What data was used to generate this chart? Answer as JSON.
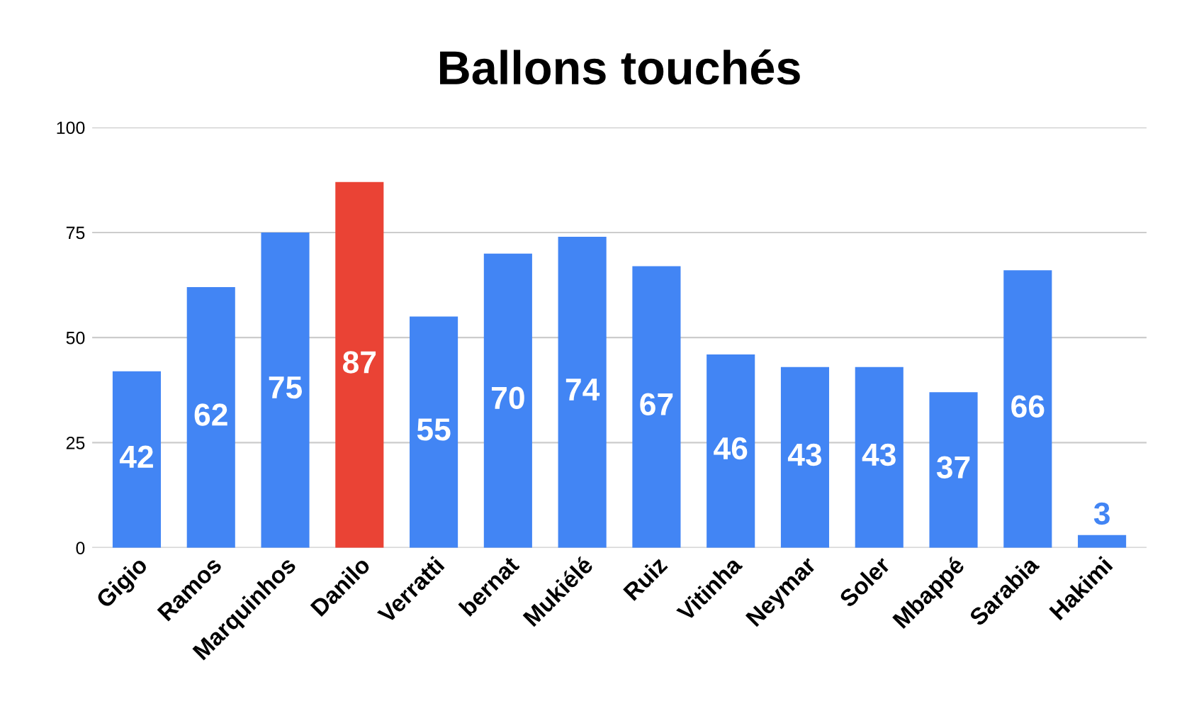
{
  "chart_data": {
    "type": "bar",
    "title": "Ballons touchés",
    "categories": [
      "Gigio",
      "Ramos",
      "Marquinhos",
      "Danilo",
      "Verratti",
      "bernat",
      "Mukiélé",
      "Ruiz",
      "Vitinha",
      "Neymar",
      "Soler",
      "Mbappé",
      "Sarabia",
      "Hakimi"
    ],
    "values": [
      42,
      62,
      75,
      87,
      55,
      70,
      74,
      67,
      46,
      43,
      43,
      37,
      66,
      3
    ],
    "colors": [
      "#4285f4",
      "#4285f4",
      "#4285f4",
      "#ea4335",
      "#4285f4",
      "#4285f4",
      "#4285f4",
      "#4285f4",
      "#4285f4",
      "#4285f4",
      "#4285f4",
      "#4285f4",
      "#4285f4",
      "#4285f4"
    ],
    "ylim": [
      0,
      100
    ],
    "yticks": [
      0,
      25,
      50,
      75,
      100
    ],
    "grid": "y",
    "data_labels": true
  }
}
